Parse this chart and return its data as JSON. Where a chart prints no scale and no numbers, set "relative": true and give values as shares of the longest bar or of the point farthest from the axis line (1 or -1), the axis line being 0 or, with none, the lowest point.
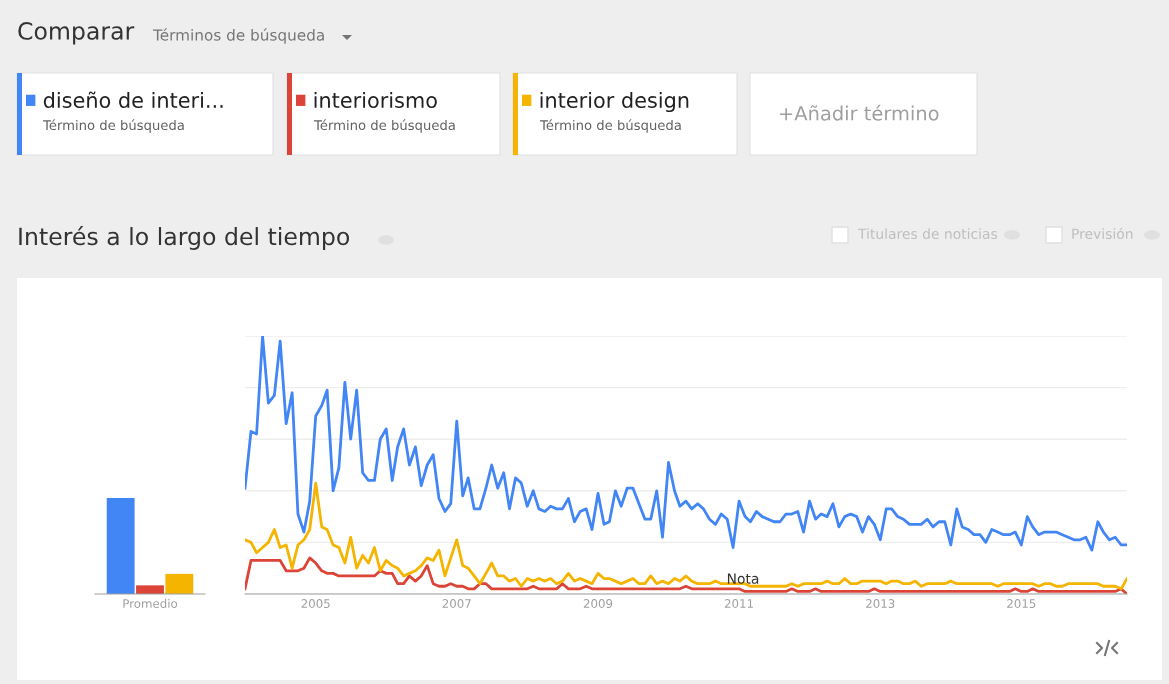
{
  "chart_data": [
    {
      "type": "bar",
      "relative": true,
      "categories": [
        "Promedio"
      ],
      "series": [
        {
          "color": "#4285f4",
          "values": [
            1
          ]
        },
        {
          "color": "#db4437",
          "values": [
            0.09
          ]
        },
        {
          "color": "#f4b400",
          "values": [
            0.21
          ]
        }
      ]
    },
    {
      "type": "line",
      "relative": true,
      "title": "Interés a lo largo del tiempo",
      "legend": "top",
      "grid": "y",
      "x": [
        "2004-01",
        "2004-02",
        "2004-03",
        "2004-04",
        "2004-05",
        "2004-06",
        "2004-07",
        "2004-08",
        "2004-09",
        "2004-10",
        "2004-11",
        "2004-12",
        "2005-01",
        "2005-02",
        "2005-03",
        "2005-04",
        "2005-05",
        "2005-06",
        "2005-07",
        "2005-08",
        "2005-09",
        "2005-10",
        "2005-11",
        "2005-12",
        "2006-01",
        "2006-02",
        "2006-03",
        "2006-04",
        "2006-05",
        "2006-06",
        "2006-07",
        "2006-08",
        "2006-09",
        "2006-10",
        "2006-11",
        "2006-12",
        "2007-01",
        "2007-02",
        "2007-03",
        "2007-04",
        "2007-05",
        "2007-06",
        "2007-07",
        "2007-08",
        "2007-09",
        "2007-10",
        "2007-11",
        "2007-12",
        "2008-01",
        "2008-02",
        "2008-03",
        "2008-04",
        "2008-05",
        "2008-06",
        "2008-07",
        "2008-08",
        "2008-09",
        "2008-10",
        "2008-11",
        "2008-12",
        "2009-01",
        "2009-02",
        "2009-03",
        "2009-04",
        "2009-05",
        "2009-06",
        "2009-07",
        "2009-08",
        "2009-09",
        "2009-10",
        "2009-11",
        "2009-12",
        "2010-01",
        "2010-02",
        "2010-03",
        "2010-04",
        "2010-05",
        "2010-06",
        "2010-07",
        "2010-08",
        "2010-09",
        "2010-10",
        "2010-11",
        "2010-12",
        "2011-01",
        "2011-02",
        "2011-03",
        "2011-04",
        "2011-05",
        "2011-06",
        "2011-07",
        "2011-08",
        "2011-09",
        "2011-10",
        "2011-11",
        "2011-12",
        "2012-01",
        "2012-02",
        "2012-03",
        "2012-04",
        "2012-05",
        "2012-06",
        "2012-07",
        "2012-08",
        "2012-09",
        "2012-10",
        "2012-11",
        "2012-12",
        "2013-01",
        "2013-02",
        "2013-03",
        "2013-04",
        "2013-05",
        "2013-06",
        "2013-07",
        "2013-08",
        "2013-09",
        "2013-10",
        "2013-11",
        "2013-12",
        "2014-01",
        "2014-02",
        "2014-03",
        "2014-04",
        "2014-05",
        "2014-06",
        "2014-07",
        "2014-08",
        "2014-09",
        "2014-10",
        "2014-11",
        "2014-12",
        "2015-01",
        "2015-02",
        "2015-03",
        "2015-04",
        "2015-05",
        "2015-06",
        "2015-07",
        "2015-08",
        "2015-09",
        "2015-10",
        "2015-11",
        "2015-12",
        "2016-01",
        "2016-02",
        "2016-03",
        "2016-04",
        "2016-05",
        "2016-06",
        "2016-07"
      ],
      "xlim": [
        "2004-01",
        "2016-07"
      ],
      "xticks": [
        "2005",
        "2007",
        "2009",
        "2011",
        "2013",
        "2015"
      ],
      "annotations": [
        "Comparar",
        "Términos de búsqueda",
        "Término de búsqueda",
        "Término de búsqueda",
        "Término de búsqueda",
        "+Añadir término",
        "Titulares de noticias",
        "Previsión",
        "Nota"
      ],
      "series": [
        {
          "name": "diseño de interi...",
          "color": "#4285f4",
          "values": [
            0.41,
            0.63,
            0.62,
            1.0,
            0.74,
            0.77,
            0.98,
            0.66,
            0.78,
            0.31,
            0.24,
            0.36,
            0.69,
            0.73,
            0.79,
            0.4,
            0.49,
            0.82,
            0.6,
            0.79,
            0.47,
            0.44,
            0.44,
            0.6,
            0.64,
            0.44,
            0.57,
            0.64,
            0.5,
            0.57,
            0.42,
            0.5,
            0.54,
            0.37,
            0.32,
            0.35,
            0.67,
            0.38,
            0.45,
            0.33,
            0.33,
            0.41,
            0.5,
            0.41,
            0.47,
            0.33,
            0.45,
            0.43,
            0.34,
            0.4,
            0.33,
            0.32,
            0.34,
            0.33,
            0.33,
            0.37,
            0.28,
            0.32,
            0.33,
            0.25,
            0.39,
            0.27,
            0.28,
            0.4,
            0.34,
            0.41,
            0.41,
            0.35,
            0.29,
            0.29,
            0.4,
            0.22,
            0.51,
            0.4,
            0.34,
            0.36,
            0.33,
            0.35,
            0.33,
            0.29,
            0.27,
            0.31,
            0.29,
            0.18,
            0.36,
            0.3,
            0.28,
            0.32,
            0.3,
            0.29,
            0.28,
            0.28,
            0.31,
            0.31,
            0.32,
            0.24,
            0.36,
            0.29,
            0.31,
            0.3,
            0.35,
            0.26,
            0.3,
            0.31,
            0.3,
            0.24,
            0.3,
            0.27,
            0.21,
            0.33,
            0.33,
            0.3,
            0.29,
            0.27,
            0.27,
            0.27,
            0.29,
            0.26,
            0.28,
            0.28,
            0.19,
            0.33,
            0.26,
            0.25,
            0.23,
            0.23,
            0.2,
            0.25,
            0.24,
            0.23,
            0.23,
            0.24,
            0.19,
            0.3,
            0.26,
            0.23,
            0.24,
            0.24,
            0.24,
            0.23,
            0.22,
            0.21,
            0.21,
            0.22,
            0.17,
            0.28,
            0.24,
            0.21,
            0.22,
            0.19,
            0.19
          ]
        },
        {
          "name": "interiorismo",
          "color": "#db4437",
          "values": [
            0.02,
            0.13,
            0.13,
            0.13,
            0.13,
            0.13,
            0.13,
            0.09,
            0.09,
            0.09,
            0.1,
            0.14,
            0.12,
            0.09,
            0.08,
            0.08,
            0.07,
            0.07,
            0.07,
            0.07,
            0.07,
            0.07,
            0.07,
            0.09,
            0.08,
            0.08,
            0.04,
            0.04,
            0.07,
            0.05,
            0.07,
            0.11,
            0.04,
            0.03,
            0.03,
            0.04,
            0.03,
            0.03,
            0.02,
            0.02,
            0.04,
            0.04,
            0.02,
            0.02,
            0.02,
            0.02,
            0.02,
            0.02,
            0.02,
            0.03,
            0.02,
            0.02,
            0.02,
            0.02,
            0.04,
            0.02,
            0.02,
            0.02,
            0.03,
            0.02,
            0.02,
            0.02,
            0.02,
            0.02,
            0.02,
            0.02,
            0.02,
            0.02,
            0.02,
            0.02,
            0.02,
            0.02,
            0.02,
            0.02,
            0.02,
            0.03,
            0.02,
            0.02,
            0.02,
            0.02,
            0.02,
            0.02,
            0.02,
            0.02,
            0.02,
            0.01,
            0.01,
            0.01,
            0.01,
            0.01,
            0.01,
            0.01,
            0.01,
            0.02,
            0.01,
            0.01,
            0.01,
            0.02,
            0.01,
            0.01,
            0.01,
            0.01,
            0.01,
            0.01,
            0.01,
            0.01,
            0.01,
            0.02,
            0.01,
            0.01,
            0.01,
            0.01,
            0.01,
            0.01,
            0.01,
            0.01,
            0.01,
            0.01,
            0.01,
            0.01,
            0.01,
            0.01,
            0.01,
            0.01,
            0.01,
            0.01,
            0.01,
            0.01,
            0.01,
            0.01,
            0.01,
            0.02,
            0.01,
            0.01,
            0.02,
            0.01,
            0.01,
            0.01,
            0.01,
            0.01,
            0.01,
            0.01,
            0.01,
            0.01,
            0.01,
            0.01,
            0.01,
            0.01,
            0.01,
            0.02,
            0.0
          ]
        },
        {
          "name": "interior design",
          "color": "#f4b400",
          "values": [
            0.21,
            0.2,
            0.16,
            0.18,
            0.2,
            0.25,
            0.18,
            0.19,
            0.1,
            0.19,
            0.21,
            0.25,
            0.43,
            0.26,
            0.25,
            0.19,
            0.18,
            0.12,
            0.22,
            0.1,
            0.15,
            0.12,
            0.18,
            0.09,
            0.13,
            0.11,
            0.1,
            0.07,
            0.08,
            0.09,
            0.11,
            0.14,
            0.13,
            0.17,
            0.07,
            0.14,
            0.21,
            0.11,
            0.1,
            0.07,
            0.04,
            0.08,
            0.12,
            0.07,
            0.07,
            0.05,
            0.06,
            0.03,
            0.06,
            0.05,
            0.06,
            0.05,
            0.06,
            0.04,
            0.05,
            0.08,
            0.05,
            0.06,
            0.05,
            0.04,
            0.08,
            0.06,
            0.06,
            0.05,
            0.04,
            0.05,
            0.06,
            0.04,
            0.04,
            0.07,
            0.04,
            0.05,
            0.04,
            0.06,
            0.05,
            0.07,
            0.05,
            0.04,
            0.04,
            0.04,
            0.05,
            0.04,
            0.04,
            0.04,
            0.04,
            0.04,
            0.03,
            0.03,
            0.03,
            0.03,
            0.03,
            0.03,
            0.03,
            0.04,
            0.03,
            0.04,
            0.04,
            0.04,
            0.04,
            0.05,
            0.04,
            0.04,
            0.06,
            0.04,
            0.04,
            0.05,
            0.05,
            0.05,
            0.05,
            0.04,
            0.05,
            0.05,
            0.04,
            0.04,
            0.05,
            0.03,
            0.04,
            0.04,
            0.04,
            0.04,
            0.05,
            0.04,
            0.04,
            0.04,
            0.04,
            0.04,
            0.04,
            0.04,
            0.03,
            0.04,
            0.04,
            0.04,
            0.04,
            0.04,
            0.04,
            0.03,
            0.04,
            0.04,
            0.03,
            0.03,
            0.04,
            0.04,
            0.04,
            0.04,
            0.04,
            0.04,
            0.03,
            0.03,
            0.03,
            0.02,
            0.06
          ]
        }
      ]
    }
  ]
}
